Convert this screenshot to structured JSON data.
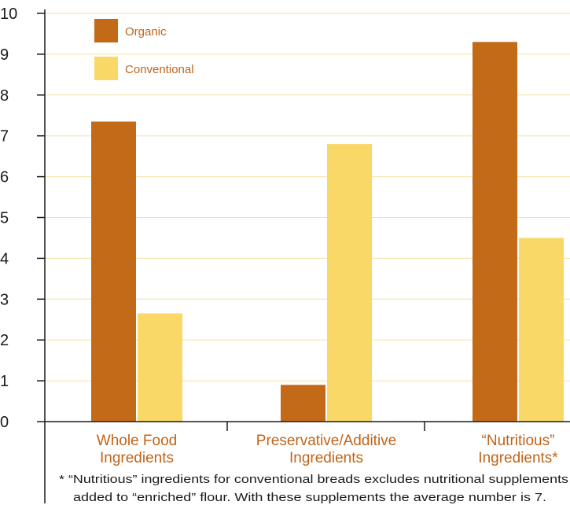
{
  "chart_data": {
    "type": "bar",
    "categories": [
      [
        "Whole Food",
        "Ingredients"
      ],
      [
        "Preservative/Additive",
        "Ingredients"
      ],
      [
        "“Nutritious”",
        "Ingredients*"
      ]
    ],
    "series": [
      {
        "name": "Organic",
        "color": "#c26a17",
        "values": [
          7.35,
          0.9,
          9.3
        ]
      },
      {
        "name": "Conventional",
        "color": "#f9d868",
        "values": [
          2.65,
          6.8,
          4.5
        ]
      }
    ],
    "ylim": [
      0,
      10
    ],
    "yticks": [
      "0",
      "1",
      "2",
      "3",
      "4",
      "5",
      "6",
      "7",
      "8",
      "9",
      "10"
    ],
    "grid": true,
    "legend_position": "top-left",
    "colors": {
      "grid": "#f5e2a6",
      "axis": "#1a1a1a",
      "category_text": "#c0641a"
    },
    "footnote": [
      "* “Nutritious” ingredients for conventional breads excludes nutritional supplements",
      "added to “enriched” flour.  With these supplements the average number is 7."
    ]
  }
}
